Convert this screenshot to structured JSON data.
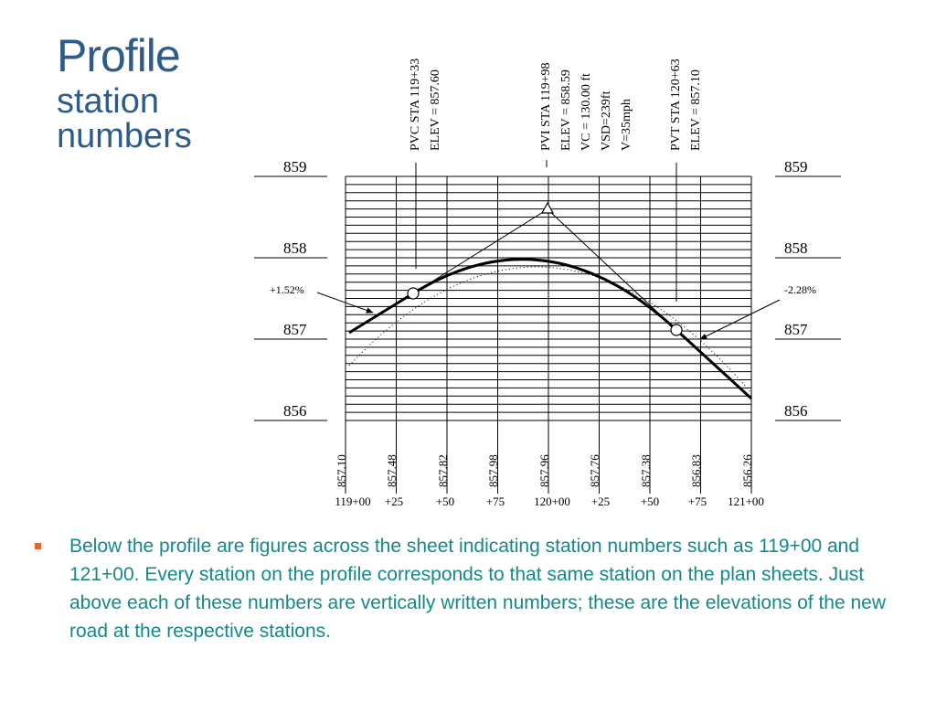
{
  "title": {
    "main": "Profile",
    "sub_line1": "station",
    "sub_line2": "numbers"
  },
  "colors": {
    "title": "#2e5c8a",
    "body_text": "#138a8a",
    "bullet": "#e2682a"
  },
  "diagram": {
    "elevation_labels": [
      "859",
      "858",
      "857",
      "856"
    ],
    "grade_left": "+1.52%",
    "grade_right": "-2.28%",
    "pvc": {
      "line1": "PVC  STA 119+33",
      "line2": "ELEV = 857.60"
    },
    "pvi": {
      "line1": "PVI  STA 119+98",
      "line2": "ELEV = 858.59",
      "line3": "VC = 130.00 ft",
      "line4": "VSD=239ft",
      "line5": "V=35mph"
    },
    "pvt": {
      "line1": "PVT  STA 120+63",
      "line2": "ELEV = 857.10"
    },
    "station_elevations": [
      "857.10",
      "857.48",
      "857.82",
      "857.98",
      "857.96",
      "857.76",
      "857.38",
      "856.83",
      "856.26"
    ],
    "stations": [
      "119+00",
      "+25",
      "+50",
      "+75",
      "120+00",
      "+25",
      "+50",
      "+75",
      "121+00"
    ]
  },
  "bullet": {
    "text": "Below the profile are figures across the sheet indicating station numbers such as 119+00 and 121+00.  Every station on the profile corresponds to that same station on the plan sheets.  Just above each of these numbers are vertically written numbers; these are the elevations of the new road at the respective stations."
  }
}
